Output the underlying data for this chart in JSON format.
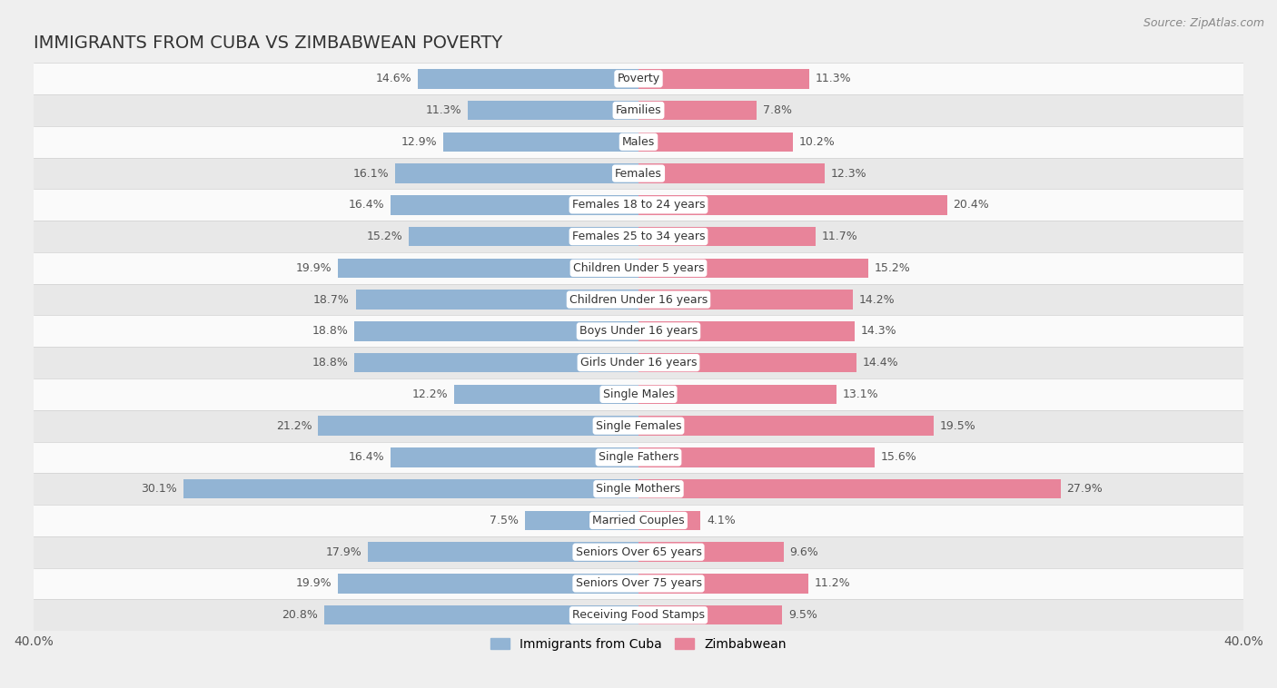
{
  "title": "IMMIGRANTS FROM CUBA VS ZIMBABWEAN POVERTY",
  "source": "Source: ZipAtlas.com",
  "categories": [
    "Poverty",
    "Families",
    "Males",
    "Females",
    "Females 18 to 24 years",
    "Females 25 to 34 years",
    "Children Under 5 years",
    "Children Under 16 years",
    "Boys Under 16 years",
    "Girls Under 16 years",
    "Single Males",
    "Single Females",
    "Single Fathers",
    "Single Mothers",
    "Married Couples",
    "Seniors Over 65 years",
    "Seniors Over 75 years",
    "Receiving Food Stamps"
  ],
  "cuba_values": [
    14.6,
    11.3,
    12.9,
    16.1,
    16.4,
    15.2,
    19.9,
    18.7,
    18.8,
    18.8,
    12.2,
    21.2,
    16.4,
    30.1,
    7.5,
    17.9,
    19.9,
    20.8
  ],
  "zimbabwe_values": [
    11.3,
    7.8,
    10.2,
    12.3,
    20.4,
    11.7,
    15.2,
    14.2,
    14.3,
    14.4,
    13.1,
    19.5,
    15.6,
    27.9,
    4.1,
    9.6,
    11.2,
    9.5
  ],
  "cuba_color": "#92b4d4",
  "zimbabwe_color": "#e8849a",
  "bar_height": 0.62,
  "x_max": 40.0,
  "background_color": "#efefef",
  "row_light": "#fafafa",
  "row_dark": "#e8e8e8",
  "label_color": "#555555",
  "title_fontsize": 14,
  "tick_fontsize": 10,
  "label_fontsize": 9,
  "value_fontsize": 9
}
